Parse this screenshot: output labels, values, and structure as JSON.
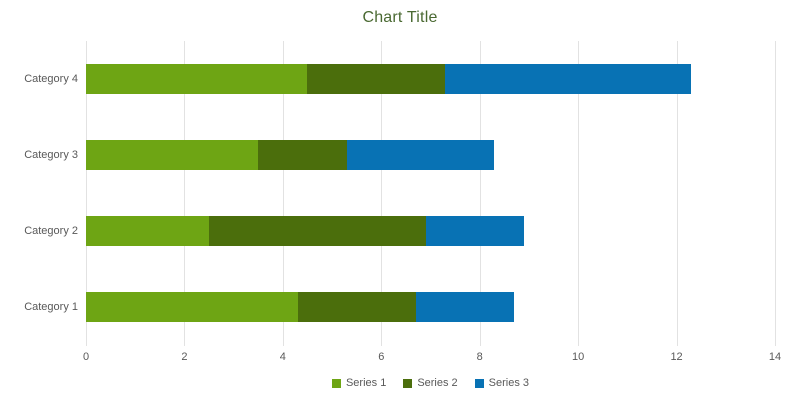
{
  "chart_data": {
    "type": "bar",
    "orientation": "horizontal",
    "stacked": true,
    "title": "Chart Title",
    "categories": [
      "Category 1",
      "Category 2",
      "Category 3",
      "Category 4"
    ],
    "category_display_order": "bottom-to-top",
    "series": [
      {
        "name": "Series 1",
        "color": "#6EA514",
        "values": [
          4.3,
          2.5,
          3.5,
          4.5
        ]
      },
      {
        "name": "Series 2",
        "color": "#4B6E0C",
        "values": [
          2.4,
          4.4,
          1.8,
          2.8
        ]
      },
      {
        "name": "Series 3",
        "color": "#0872B4",
        "values": [
          2.0,
          2.0,
          3.0,
          5.0
        ]
      }
    ],
    "totals": [
      8.7,
      8.9,
      8.3,
      12.3
    ],
    "xlim": [
      0,
      14
    ],
    "x_ticks": [
      0,
      2,
      4,
      6,
      8,
      10,
      12,
      14
    ],
    "xlabel": "",
    "ylabel": "",
    "grid": true,
    "legend_position": "bottom-center"
  },
  "colors": {
    "title": "#4A6932",
    "text": "#595959",
    "gridline": "#E2E2E2",
    "background": "#FFFFFF"
  }
}
